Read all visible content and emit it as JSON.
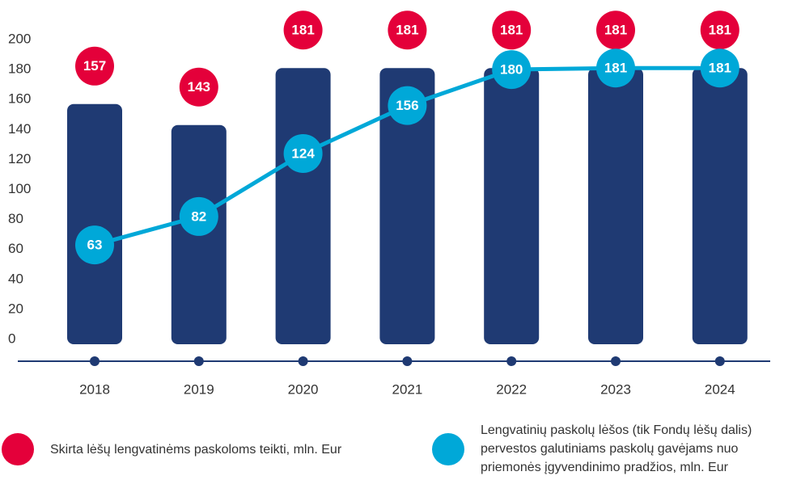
{
  "chart_data": {
    "type": "bar",
    "categories": [
      "2018",
      "2019",
      "2020",
      "2021",
      "2022",
      "2023",
      "2024"
    ],
    "series": [
      {
        "name": "Skirta lėšų lengvatinėms paskoloms teikti, mln. Eur",
        "type": "bar",
        "color": "#1f3a73",
        "label_color": "#e4003a",
        "values": [
          157,
          143,
          181,
          181,
          181,
          181,
          181
        ]
      },
      {
        "name": "Lengvatinių paskolų lėšos (tik Fondų lėšų dalis) pervestos galutiniams paskolų gavėjams nuo priemonės įgyvendinimo pradžios, mln. Eur",
        "type": "line",
        "color": "#00a8d8",
        "values": [
          63,
          82,
          124,
          156,
          180,
          181,
          181
        ]
      }
    ],
    "ylim": [
      0,
      200
    ],
    "yticks": [
      0,
      20,
      40,
      60,
      80,
      100,
      120,
      140,
      160,
      180,
      200
    ]
  }
}
